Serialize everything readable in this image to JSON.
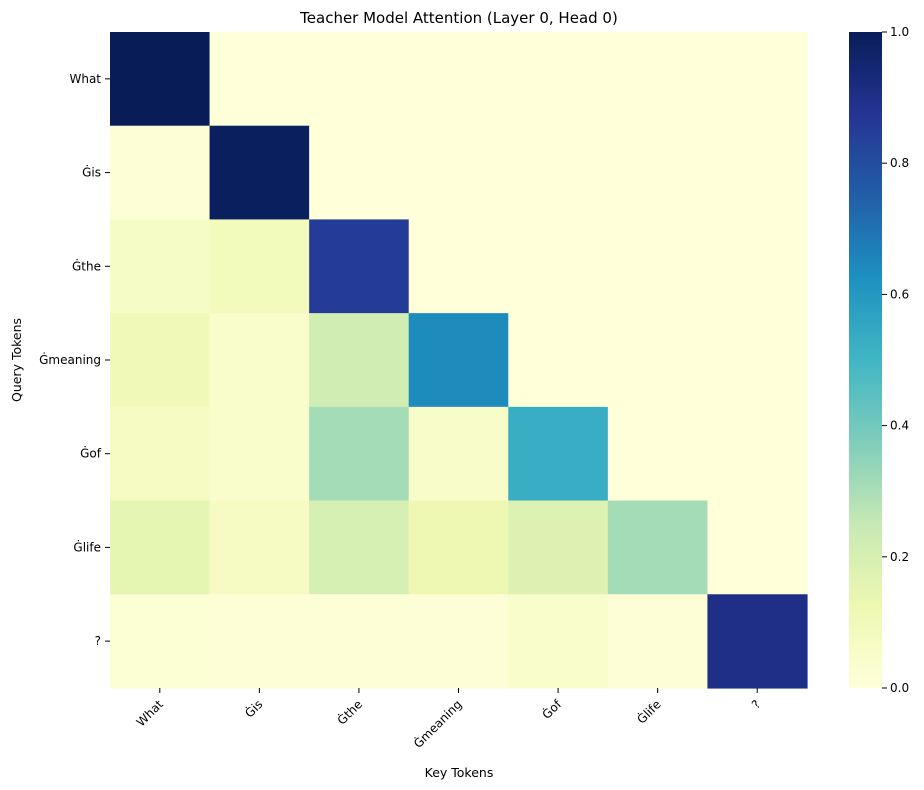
{
  "chart_data": {
    "type": "heatmap",
    "title": "Teacher Model Attention (Layer 0, Head 0)",
    "xlabel": "Key Tokens",
    "ylabel": "Query Tokens",
    "x_tokens": [
      "What",
      "Ġis",
      "Ġthe",
      "Ġmeaning",
      "Ġof",
      "Ġlife",
      "?"
    ],
    "y_tokens": [
      "What",
      "Ġis",
      "Ġthe",
      "Ġmeaning",
      "Ġof",
      "Ġlife",
      "?"
    ],
    "values": [
      [
        1.0,
        0.0,
        0.0,
        0.0,
        0.0,
        0.0,
        0.0
      ],
      [
        0.01,
        0.99,
        0.0,
        0.0,
        0.0,
        0.0,
        0.0
      ],
      [
        0.06,
        0.09,
        0.85,
        0.0,
        0.0,
        0.0,
        0.0
      ],
      [
        0.1,
        0.04,
        0.22,
        0.64,
        0.0,
        0.0,
        0.0
      ],
      [
        0.07,
        0.04,
        0.31,
        0.05,
        0.53,
        0.0,
        0.0
      ],
      [
        0.15,
        0.07,
        0.2,
        0.12,
        0.18,
        0.31,
        0.0
      ],
      [
        0.02,
        0.01,
        0.01,
        0.01,
        0.04,
        0.01,
        0.9
      ]
    ],
    "vmin": 0.0,
    "vmax": 1.0,
    "colormap": "YlGnBu",
    "colorbar_ticks": [
      "0.0",
      "0.2",
      "0.4",
      "0.6",
      "0.8",
      "1.0"
    ]
  }
}
